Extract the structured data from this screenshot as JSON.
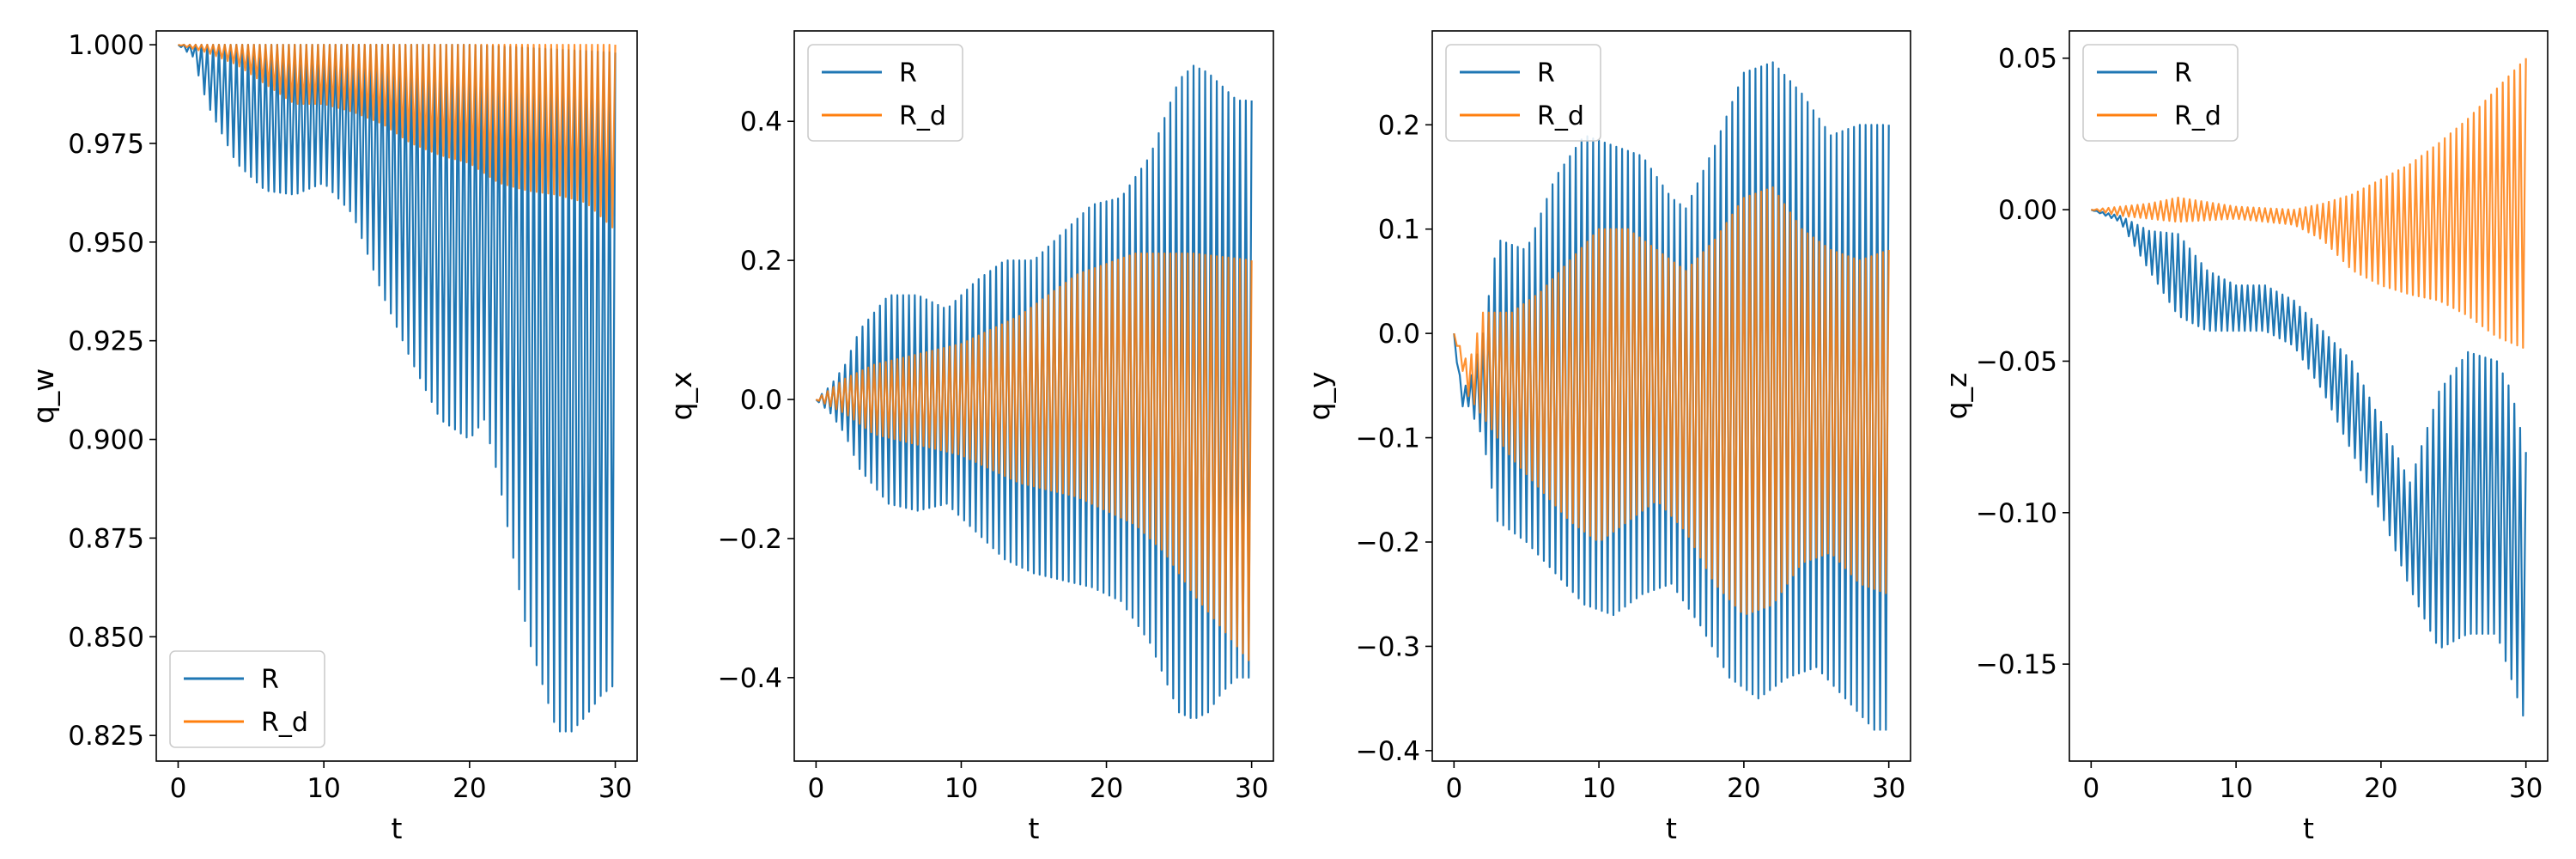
{
  "chart_data": [
    {
      "type": "line",
      "xlabel": "t",
      "ylabel": "q_w",
      "xlim": [
        -1.5,
        31.5
      ],
      "ylim": [
        0.8185,
        1.0035
      ],
      "xticks": [
        0,
        10,
        20,
        30
      ],
      "yticks": [
        0.825,
        0.85,
        0.875,
        0.9,
        0.925,
        0.95,
        0.975,
        1.0
      ],
      "ytick_labels": [
        "0.825",
        "0.850",
        "0.875",
        "0.900",
        "0.925",
        "0.950",
        "0.975",
        "1.000"
      ],
      "legend": "lower-left",
      "grid": false,
      "oscillation_period": 0.4,
      "series": [
        {
          "name": "R",
          "color": "#1f77b4",
          "upper": [
            [
              0,
              1.0
            ],
            [
              5,
              1.0
            ],
            [
              10,
              1.0
            ],
            [
              15,
              1.0
            ],
            [
              20,
              1.0
            ],
            [
              25,
              0.999
            ],
            [
              30,
              0.998
            ]
          ],
          "lower": [
            [
              0,
              1.0
            ],
            [
              1,
              0.997
            ],
            [
              2,
              0.985
            ],
            [
              4,
              0.97
            ],
            [
              6,
              0.963
            ],
            [
              8,
              0.962
            ],
            [
              10,
              0.965
            ],
            [
              12,
              0.957
            ],
            [
              14,
              0.937
            ],
            [
              16,
              0.92
            ],
            [
              18,
              0.905
            ],
            [
              20,
              0.9
            ],
            [
              21,
              0.905
            ],
            [
              22,
              0.89
            ],
            [
              24,
              0.85
            ],
            [
              26,
              0.826
            ],
            [
              27,
              0.826
            ],
            [
              28,
              0.83
            ],
            [
              29,
              0.835
            ],
            [
              30,
              0.838
            ]
          ]
        },
        {
          "name": "R_d",
          "color": "#ff7f0e",
          "upper": [
            [
              0,
              1.0
            ],
            [
              10,
              1.0
            ],
            [
              20,
              1.0
            ],
            [
              30,
              1.0
            ]
          ],
          "lower": [
            [
              0,
              1.0
            ],
            [
              2,
              0.998
            ],
            [
              4,
              0.995
            ],
            [
              6,
              0.99
            ],
            [
              8,
              0.985
            ],
            [
              10,
              0.985
            ],
            [
              12,
              0.983
            ],
            [
              14,
              0.98
            ],
            [
              16,
              0.975
            ],
            [
              18,
              0.972
            ],
            [
              20,
              0.97
            ],
            [
              22,
              0.965
            ],
            [
              24,
              0.963
            ],
            [
              26,
              0.962
            ],
            [
              28,
              0.96
            ],
            [
              30,
              0.953
            ]
          ]
        }
      ]
    },
    {
      "type": "line",
      "xlabel": "t",
      "ylabel": "q_x",
      "xlim": [
        -1.5,
        31.5
      ],
      "ylim": [
        -0.52,
        0.53
      ],
      "xticks": [
        0,
        10,
        20,
        30
      ],
      "yticks": [
        -0.4,
        -0.2,
        0.0,
        0.2,
        0.4
      ],
      "ytick_labels": [
        "−0.4",
        "−0.2",
        "0.0",
        "0.2",
        "0.4"
      ],
      "legend": "top-left",
      "grid": false,
      "oscillation_period": 0.4,
      "series": [
        {
          "name": "R",
          "color": "#1f77b4",
          "upper": [
            [
              0,
              0.0
            ],
            [
              1,
              0.02
            ],
            [
              2,
              0.05
            ],
            [
              3,
              0.1
            ],
            [
              5,
              0.15
            ],
            [
              7,
              0.15
            ],
            [
              9,
              0.13
            ],
            [
              11,
              0.17
            ],
            [
              13,
              0.2
            ],
            [
              15,
              0.2
            ],
            [
              17,
              0.24
            ],
            [
              19,
              0.28
            ],
            [
              21,
              0.29
            ],
            [
              23,
              0.35
            ],
            [
              25,
              0.46
            ],
            [
              26,
              0.48
            ],
            [
              27,
              0.47
            ],
            [
              28,
              0.45
            ],
            [
              29,
              0.43
            ],
            [
              30,
              0.43
            ]
          ],
          "lower": [
            [
              0,
              0.0
            ],
            [
              1,
              -0.02
            ],
            [
              2,
              -0.05
            ],
            [
              3,
              -0.1
            ],
            [
              5,
              -0.15
            ],
            [
              7,
              -0.16
            ],
            [
              9,
              -0.15
            ],
            [
              11,
              -0.19
            ],
            [
              13,
              -0.23
            ],
            [
              15,
              -0.25
            ],
            [
              17,
              -0.26
            ],
            [
              19,
              -0.27
            ],
            [
              21,
              -0.29
            ],
            [
              23,
              -0.35
            ],
            [
              25,
              -0.45
            ],
            [
              26,
              -0.46
            ],
            [
              27,
              -0.45
            ],
            [
              28,
              -0.42
            ],
            [
              29,
              -0.4
            ],
            [
              30,
              -0.4
            ]
          ]
        },
        {
          "name": "R_d",
          "color": "#ff7f0e",
          "upper": [
            [
              0,
              0.0
            ],
            [
              2,
              0.03
            ],
            [
              4,
              0.05
            ],
            [
              6,
              0.06
            ],
            [
              10,
              0.08
            ],
            [
              14,
              0.12
            ],
            [
              18,
              0.18
            ],
            [
              22,
              0.21
            ],
            [
              26,
              0.21
            ],
            [
              30,
              0.2
            ]
          ],
          "lower": [
            [
              0,
              0.0
            ],
            [
              2,
              -0.02
            ],
            [
              4,
              -0.05
            ],
            [
              6,
              -0.06
            ],
            [
              10,
              -0.08
            ],
            [
              14,
              -0.12
            ],
            [
              18,
              -0.14
            ],
            [
              22,
              -0.18
            ],
            [
              24,
              -0.22
            ],
            [
              26,
              -0.28
            ],
            [
              28,
              -0.33
            ],
            [
              30,
              -0.38
            ]
          ]
        }
      ]
    },
    {
      "type": "line",
      "xlabel": "t",
      "ylabel": "q_y",
      "xlim": [
        -1.5,
        31.5
      ],
      "ylim": [
        -0.41,
        0.29
      ],
      "xticks": [
        0,
        10,
        20,
        30
      ],
      "yticks": [
        -0.4,
        -0.3,
        -0.2,
        -0.1,
        0.0,
        0.1,
        0.2
      ],
      "ytick_labels": [
        "−0.4",
        "−0.3",
        "−0.2",
        "−0.1",
        "0.0",
        "0.1",
        "0.2"
      ],
      "legend": "top-left",
      "grid": false,
      "oscillation_period": 0.4,
      "series": [
        {
          "name": "R",
          "color": "#1f77b4",
          "upper": [
            [
              0,
              0.0
            ],
            [
              0.5,
              -0.05
            ],
            [
              1,
              -0.05
            ],
            [
              2,
              0.0
            ],
            [
              3,
              0.09
            ],
            [
              5,
              0.08
            ],
            [
              7,
              0.15
            ],
            [
              9,
              0.19
            ],
            [
              11,
              0.18
            ],
            [
              13,
              0.17
            ],
            [
              15,
              0.13
            ],
            [
              16,
              0.12
            ],
            [
              18,
              0.18
            ],
            [
              20,
              0.25
            ],
            [
              22,
              0.26
            ],
            [
              24,
              0.23
            ],
            [
              26,
              0.19
            ],
            [
              28,
              0.2
            ],
            [
              30,
              0.2
            ]
          ],
          "lower": [
            [
              0,
              0.0
            ],
            [
              0.5,
              -0.07
            ],
            [
              1,
              -0.07
            ],
            [
              2,
              -0.1
            ],
            [
              3,
              -0.18
            ],
            [
              5,
              -0.2
            ],
            [
              7,
              -0.23
            ],
            [
              9,
              -0.26
            ],
            [
              11,
              -0.27
            ],
            [
              13,
              -0.25
            ],
            [
              15,
              -0.24
            ],
            [
              17,
              -0.28
            ],
            [
              19,
              -0.33
            ],
            [
              21,
              -0.35
            ],
            [
              23,
              -0.33
            ],
            [
              25,
              -0.32
            ],
            [
              27,
              -0.35
            ],
            [
              29,
              -0.38
            ],
            [
              30,
              -0.38
            ]
          ]
        },
        {
          "name": "R_d",
          "color": "#ff7f0e",
          "upper": [
            [
              0,
              0.0
            ],
            [
              1,
              -0.03
            ],
            [
              2,
              0.02
            ],
            [
              4,
              0.02
            ],
            [
              6,
              0.04
            ],
            [
              8,
              0.07
            ],
            [
              10,
              0.1
            ],
            [
              12,
              0.1
            ],
            [
              14,
              0.08
            ],
            [
              16,
              0.06
            ],
            [
              18,
              0.09
            ],
            [
              20,
              0.13
            ],
            [
              22,
              0.14
            ],
            [
              24,
              0.1
            ],
            [
              26,
              0.08
            ],
            [
              28,
              0.07
            ],
            [
              30,
              0.08
            ]
          ],
          "lower": [
            [
              0,
              0.0
            ],
            [
              1,
              -0.06
            ],
            [
              2,
              -0.08
            ],
            [
              4,
              -0.12
            ],
            [
              6,
              -0.15
            ],
            [
              8,
              -0.18
            ],
            [
              10,
              -0.2
            ],
            [
              12,
              -0.18
            ],
            [
              14,
              -0.16
            ],
            [
              16,
              -0.19
            ],
            [
              18,
              -0.24
            ],
            [
              20,
              -0.27
            ],
            [
              22,
              -0.26
            ],
            [
              24,
              -0.22
            ],
            [
              26,
              -0.21
            ],
            [
              28,
              -0.24
            ],
            [
              30,
              -0.25
            ]
          ]
        }
      ]
    },
    {
      "type": "line",
      "xlabel": "t",
      "ylabel": "q_z",
      "xlim": [
        -1.5,
        31.5
      ],
      "ylim": [
        -0.182,
        0.059
      ],
      "xticks": [
        0,
        10,
        20,
        30
      ],
      "yticks": [
        -0.15,
        -0.1,
        -0.05,
        0.0,
        0.05
      ],
      "ytick_labels": [
        "−0.15",
        "−0.10",
        "−0.05",
        "0.00",
        "0.05"
      ],
      "legend": "top-left",
      "grid": false,
      "oscillation_period": 0.4,
      "series": [
        {
          "name": "R",
          "color": "#1f77b4",
          "upper": [
            [
              0,
              0.0
            ],
            [
              2,
              -0.002
            ],
            [
              4,
              -0.007
            ],
            [
              6,
              -0.008
            ],
            [
              8,
              -0.02
            ],
            [
              10,
              -0.025
            ],
            [
              12,
              -0.025
            ],
            [
              14,
              -0.03
            ],
            [
              16,
              -0.04
            ],
            [
              18,
              -0.05
            ],
            [
              20,
              -0.07
            ],
            [
              22,
              -0.09
            ],
            [
              24,
              -0.06
            ],
            [
              26,
              -0.047
            ],
            [
              28,
              -0.05
            ],
            [
              29,
              -0.06
            ],
            [
              30,
              -0.08
            ]
          ],
          "lower": [
            [
              0,
              0.0
            ],
            [
              2,
              -0.004
            ],
            [
              4,
              -0.02
            ],
            [
              6,
              -0.035
            ],
            [
              8,
              -0.04
            ],
            [
              10,
              -0.04
            ],
            [
              12,
              -0.04
            ],
            [
              14,
              -0.045
            ],
            [
              16,
              -0.06
            ],
            [
              18,
              -0.08
            ],
            [
              20,
              -0.1
            ],
            [
              22,
              -0.125
            ],
            [
              24,
              -0.145
            ],
            [
              26,
              -0.14
            ],
            [
              28,
              -0.14
            ],
            [
              29,
              -0.155
            ],
            [
              30,
              -0.17
            ]
          ]
        },
        {
          "name": "R_d",
          "color": "#ff7f0e",
          "upper": [
            [
              0,
              0.0
            ],
            [
              4,
              0.002
            ],
            [
              6,
              0.004
            ],
            [
              10,
              0.001
            ],
            [
              14,
              0.0
            ],
            [
              16,
              0.002
            ],
            [
              18,
              0.005
            ],
            [
              20,
              0.01
            ],
            [
              22,
              0.015
            ],
            [
              24,
              0.022
            ],
            [
              26,
              0.03
            ],
            [
              28,
              0.04
            ],
            [
              30,
              0.05
            ]
          ],
          "lower": [
            [
              0,
              0.0
            ],
            [
              2,
              -0.002
            ],
            [
              4,
              -0.003
            ],
            [
              6,
              -0.004
            ],
            [
              10,
              -0.003
            ],
            [
              14,
              -0.005
            ],
            [
              16,
              -0.01
            ],
            [
              18,
              -0.02
            ],
            [
              20,
              -0.025
            ],
            [
              22,
              -0.028
            ],
            [
              24,
              -0.03
            ],
            [
              26,
              -0.035
            ],
            [
              28,
              -0.042
            ],
            [
              30,
              -0.046
            ]
          ]
        }
      ]
    }
  ]
}
